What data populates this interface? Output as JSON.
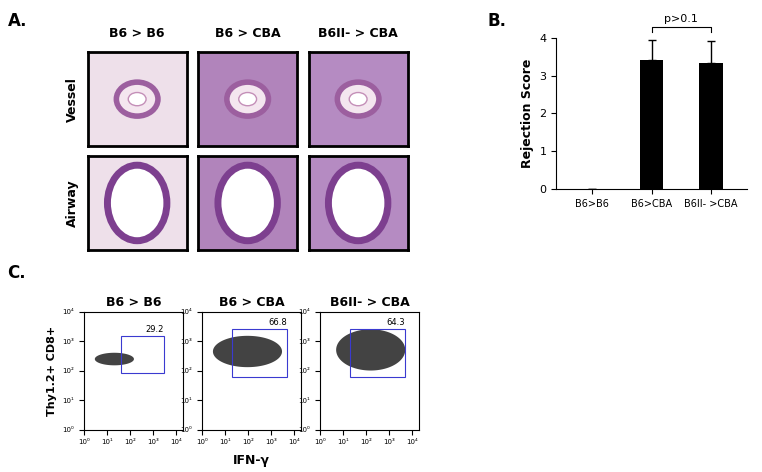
{
  "panel_A": {
    "label": "A.",
    "columns": [
      "B6 > B6",
      "B6 > CBA",
      "B6II- > CBA"
    ],
    "rows": [
      "Vessel",
      "Airway"
    ]
  },
  "chart_data": {
    "type": "bar",
    "label": "B.",
    "categories": [
      "B6>B6",
      "B6>CBA",
      "B6II- >CBA"
    ],
    "values": [
      0,
      3.4,
      3.33
    ],
    "error": [
      0,
      0.55,
      0.58
    ],
    "color": "#000000",
    "ylabel": "Rejection Score",
    "ylim": [
      0,
      4
    ],
    "yticks": [
      0,
      1,
      2,
      3,
      4
    ],
    "annotation": "p>0.1"
  },
  "panel_C": {
    "label": "C.",
    "type": "scatter",
    "xlabel": "IFN-γ",
    "ylabel": "Thy1.2+ CD8+",
    "log": true,
    "xlim": [
      1,
      20000
    ],
    "ylim": [
      1,
      10000
    ],
    "xticks": [
      {
        "value": 1,
        "label": "10⁰"
      },
      {
        "value": 10,
        "label": "10¹"
      },
      {
        "value": 100,
        "label": "10²"
      },
      {
        "value": 1000,
        "label": "10³"
      },
      {
        "value": 10000,
        "label": "10⁴"
      }
    ],
    "yticks": [
      {
        "value": 1,
        "label": "10⁰"
      },
      {
        "value": 10,
        "label": "10¹"
      },
      {
        "value": 100,
        "label": "10²"
      },
      {
        "value": 1000,
        "label": "10³"
      },
      {
        "value": 10000,
        "label": "10⁴"
      }
    ],
    "plots": [
      {
        "title": "B6 > B6",
        "population": {
          "x": [
            3,
            150
          ],
          "y": [
            150,
            400
          ]
        },
        "gate": {
          "x": [
            40,
            3000
          ],
          "y": [
            80,
            1500
          ]
        },
        "percent": 29.2
      },
      {
        "title": "B6 > CBA",
        "population": {
          "x": [
            3,
            3000
          ],
          "y": [
            130,
            1500
          ]
        },
        "gate": {
          "x": [
            20,
            5000
          ],
          "y": [
            60,
            2500
          ]
        },
        "percent": 66.8
      },
      {
        "title": "B6II- > CBA",
        "population": {
          "x": [
            5,
            5000
          ],
          "y": [
            100,
            2500
          ]
        },
        "gate": {
          "x": [
            20,
            5000
          ],
          "y": [
            60,
            2500
          ]
        },
        "percent": 64.3
      }
    ]
  }
}
